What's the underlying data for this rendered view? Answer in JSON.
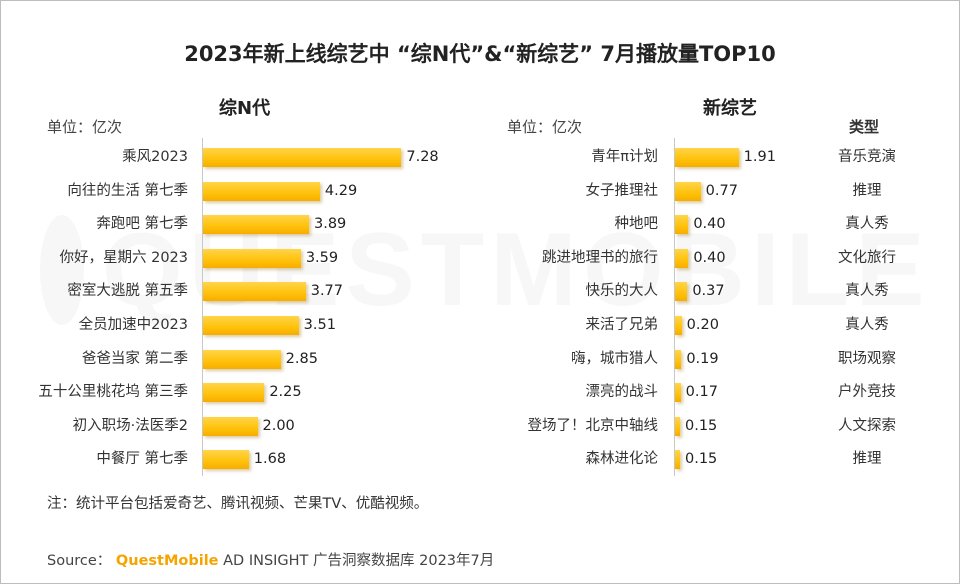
{
  "title": "2023年新上线综艺中 “综N代”&“新综艺” 7月播放量TOP10",
  "colors": {
    "bar": "#ffc10a",
    "brand": "#f5a400"
  },
  "watermark_text": "QUESTMOBILE",
  "note": "注：统计平台包括爱奇艺、腾讯视频、芒果TV、优酷视频。",
  "source": {
    "prefix": "Source：",
    "brand": "QuestMobile",
    "rest": "AD INSIGHT 广告洞察数据库 2023年7月"
  },
  "chart_data": [
    {
      "type": "bar",
      "orientation": "horizontal",
      "title": "综N代",
      "unit": "单位：亿次",
      "categories": [
        "乘风2023",
        "向往的生活 第七季",
        "奔跑吧 第七季",
        "你好，星期六 2023",
        "密室大逃脱 第五季",
        "全员加速中2023",
        "爸爸当家 第二季",
        "五十公里桃花坞 第三季",
        "初入职场·法医季2",
        "中餐厅 第七季"
      ],
      "values": [
        7.28,
        4.29,
        3.89,
        3.59,
        3.77,
        3.51,
        2.85,
        2.25,
        2.0,
        1.68
      ],
      "labels": [
        "7.28",
        "4.29",
        "3.89",
        "3.59",
        "3.77",
        "3.51",
        "2.85",
        "2.25",
        "2.00",
        "1.68"
      ],
      "xlim": [
        0,
        8
      ]
    },
    {
      "type": "bar",
      "orientation": "horizontal",
      "title": "新综艺",
      "unit": "单位：亿次",
      "type_header": "类型",
      "categories": [
        "青年π计划",
        "女子推理社",
        "种地吧",
        "跳进地理书的旅行",
        "快乐的大人",
        "来活了兄弟",
        "嗨，城市猎人",
        "漂亮的战斗",
        "登场了！北京中轴线",
        "森林进化论"
      ],
      "values": [
        1.91,
        0.77,
        0.4,
        0.4,
        0.37,
        0.2,
        0.19,
        0.17,
        0.15,
        0.15
      ],
      "labels": [
        "1.91",
        "0.77",
        "0.40",
        "0.40",
        "0.37",
        "0.20",
        "0.19",
        "0.17",
        "0.15",
        "0.15"
      ],
      "genres": [
        "音乐竞演",
        "推理",
        "真人秀",
        "文化旅行",
        "真人秀",
        "真人秀",
        "职场观察",
        "户外竞技",
        "人文探索",
        "推理"
      ],
      "xlim": [
        0,
        2.13
      ]
    }
  ]
}
